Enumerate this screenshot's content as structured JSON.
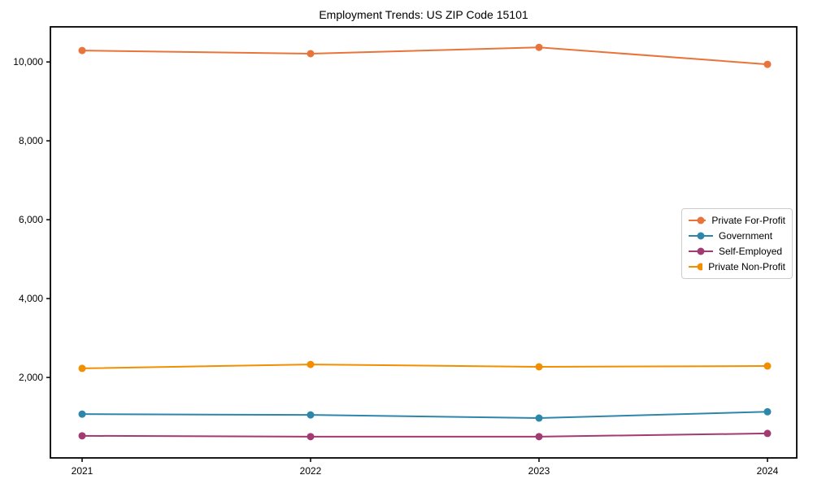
{
  "chart_data": {
    "type": "line",
    "title": "Employment Trends: US ZIP Code 15101",
    "x": [
      "2021",
      "2022",
      "2023",
      "2024"
    ],
    "series": [
      {
        "name": "Private For-Profit",
        "color": "#E8743B",
        "values": [
          10290,
          10210,
          10370,
          9940
        ]
      },
      {
        "name": "Government",
        "color": "#2E86AB",
        "values": [
          1070,
          1050,
          970,
          1130
        ]
      },
      {
        "name": "Self-Employed",
        "color": "#A23B72",
        "values": [
          520,
          500,
          500,
          580
        ]
      },
      {
        "name": "Private Non-Profit",
        "color": "#F18F01",
        "values": [
          2230,
          2330,
          2270,
          2290
        ]
      }
    ],
    "xlabel": "",
    "ylabel": "",
    "ylim": [
      -40,
      10890
    ],
    "yticks": [
      2000,
      4000,
      6000,
      8000,
      10000
    ],
    "ytick_labels": [
      "2,000",
      "4,000",
      "6,000",
      "8,000",
      "10,000"
    ],
    "grid": false,
    "legend_position": "center right",
    "marker": "circle",
    "spine_color": "#000000"
  }
}
